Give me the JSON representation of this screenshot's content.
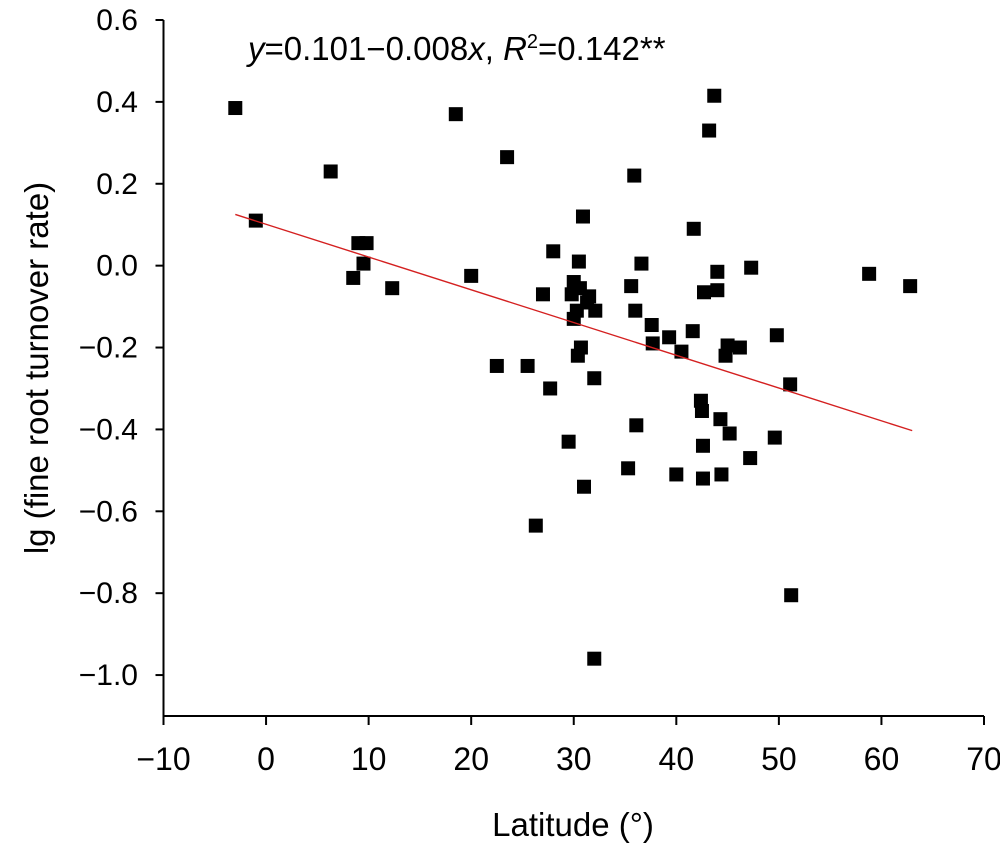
{
  "chart_data": {
    "type": "scatter",
    "title": "",
    "xlabel": "Latitude (°)",
    "ylabel": "lg (fine root turnover rate)",
    "xlim": [
      -10,
      70
    ],
    "ylim": [
      -1.1,
      0.6
    ],
    "x_ticks": [
      "−10",
      "0",
      "10",
      "20",
      "30",
      "40",
      "50",
      "60",
      "70"
    ],
    "y_ticks": [
      "0.6",
      "0.4",
      "0.2",
      "0.0",
      "−0.2",
      "−0.4",
      "−0.6",
      "−0.8",
      "−1.0"
    ],
    "grid": false,
    "legend": "none",
    "marker_color": "#000000",
    "fit_line_color": "#d42020",
    "annotation": {
      "y_var": "y",
      "eq_mid": "=0.101−0.008",
      "x_var": "x",
      "sep": ", ",
      "r_var": "R",
      "r_sup": "2",
      "r_value": "=0.142**"
    },
    "fit_line": {
      "intercept": 0.101,
      "slope": -0.008,
      "x_range": [
        -3,
        63
      ]
    },
    "points": [
      {
        "x": -3.0,
        "y": 0.385
      },
      {
        "x": -1.0,
        "y": 0.11
      },
      {
        "x": 6.3,
        "y": 0.23
      },
      {
        "x": 8.5,
        "y": -0.03
      },
      {
        "x": 9.0,
        "y": 0.055
      },
      {
        "x": 9.5,
        "y": 0.005
      },
      {
        "x": 9.8,
        "y": 0.055
      },
      {
        "x": 12.3,
        "y": -0.055
      },
      {
        "x": 18.5,
        "y": 0.37
      },
      {
        "x": 20.0,
        "y": -0.025
      },
      {
        "x": 22.5,
        "y": -0.245
      },
      {
        "x": 23.5,
        "y": 0.265
      },
      {
        "x": 25.5,
        "y": -0.245
      },
      {
        "x": 26.3,
        "y": -0.635
      },
      {
        "x": 27.0,
        "y": -0.07
      },
      {
        "x": 27.7,
        "y": -0.3
      },
      {
        "x": 28.0,
        "y": 0.035
      },
      {
        "x": 29.5,
        "y": -0.43
      },
      {
        "x": 29.8,
        "y": -0.07
      },
      {
        "x": 30.0,
        "y": -0.04
      },
      {
        "x": 30.0,
        "y": -0.13
      },
      {
        "x": 30.3,
        "y": -0.11
      },
      {
        "x": 30.4,
        "y": -0.22
      },
      {
        "x": 30.5,
        "y": 0.01
      },
      {
        "x": 30.6,
        "y": -0.055
      },
      {
        "x": 30.7,
        "y": -0.2
      },
      {
        "x": 30.9,
        "y": 0.12
      },
      {
        "x": 31.0,
        "y": -0.54
      },
      {
        "x": 31.3,
        "y": -0.09
      },
      {
        "x": 31.5,
        "y": -0.075
      },
      {
        "x": 32.0,
        "y": -0.275
      },
      {
        "x": 32.0,
        "y": -0.96
      },
      {
        "x": 32.1,
        "y": -0.11
      },
      {
        "x": 35.3,
        "y": -0.495
      },
      {
        "x": 35.6,
        "y": -0.05
      },
      {
        "x": 35.9,
        "y": 0.22
      },
      {
        "x": 36.0,
        "y": -0.11
      },
      {
        "x": 36.1,
        "y": -0.39
      },
      {
        "x": 36.6,
        "y": 0.005
      },
      {
        "x": 37.6,
        "y": -0.145
      },
      {
        "x": 37.7,
        "y": -0.19
      },
      {
        "x": 39.3,
        "y": -0.175
      },
      {
        "x": 40.0,
        "y": -0.51
      },
      {
        "x": 40.5,
        "y": -0.21
      },
      {
        "x": 41.6,
        "y": -0.16
      },
      {
        "x": 41.7,
        "y": 0.09
      },
      {
        "x": 42.4,
        "y": -0.33
      },
      {
        "x": 42.5,
        "y": -0.355
      },
      {
        "x": 42.6,
        "y": -0.44
      },
      {
        "x": 42.6,
        "y": -0.52
      },
      {
        "x": 42.7,
        "y": -0.065
      },
      {
        "x": 43.2,
        "y": 0.33
      },
      {
        "x": 43.7,
        "y": 0.415
      },
      {
        "x": 44.0,
        "y": -0.06
      },
      {
        "x": 44.0,
        "y": -0.015
      },
      {
        "x": 44.3,
        "y": -0.375
      },
      {
        "x": 44.4,
        "y": -0.51
      },
      {
        "x": 44.8,
        "y": -0.22
      },
      {
        "x": 45.0,
        "y": -0.195
      },
      {
        "x": 45.2,
        "y": -0.41
      },
      {
        "x": 46.2,
        "y": -0.2
      },
      {
        "x": 47.2,
        "y": -0.47
      },
      {
        "x": 47.3,
        "y": -0.005
      },
      {
        "x": 49.6,
        "y": -0.42
      },
      {
        "x": 49.8,
        "y": -0.17
      },
      {
        "x": 51.1,
        "y": -0.29
      },
      {
        "x": 51.2,
        "y": -0.805
      },
      {
        "x": 58.8,
        "y": -0.02
      },
      {
        "x": 62.8,
        "y": -0.05
      }
    ]
  }
}
